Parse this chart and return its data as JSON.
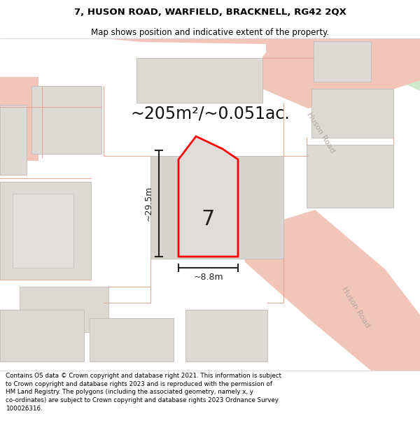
{
  "title_line1": "7, HUSON ROAD, WARFIELD, BRACKNELL, RG42 2QX",
  "title_line2": "Map shows position and indicative extent of the property.",
  "area_text": "~205m²/~0.051ac.",
  "dim_height": "~29.5m",
  "dim_width": "~8.8m",
  "label_number": "7",
  "footer_text": "Contains OS data © Crown copyright and database right 2021. This information is subject\nto Crown copyright and database rights 2023 and is reproduced with the permission of\nHM Land Registry. The polygons (including the associated geometry, namely x, y\nco-ordinates) are subject to Crown copyright and database rights 2023 Ordnance Survey\n100026316.",
  "map_bg": "#ede9e3",
  "road_fill": "#f2c5ba",
  "road_line": "#e8a898",
  "property_fill": "#dddad6",
  "property_outline": "#c5c0bc",
  "highlight_color": "#ff0000",
  "road_label_color": "#b0a8a2",
  "green_area": "#d0e8cc",
  "title_bg": "#ffffff",
  "footer_bg": "#ffffff",
  "dim_color": "#222222",
  "number_color": "#222222"
}
